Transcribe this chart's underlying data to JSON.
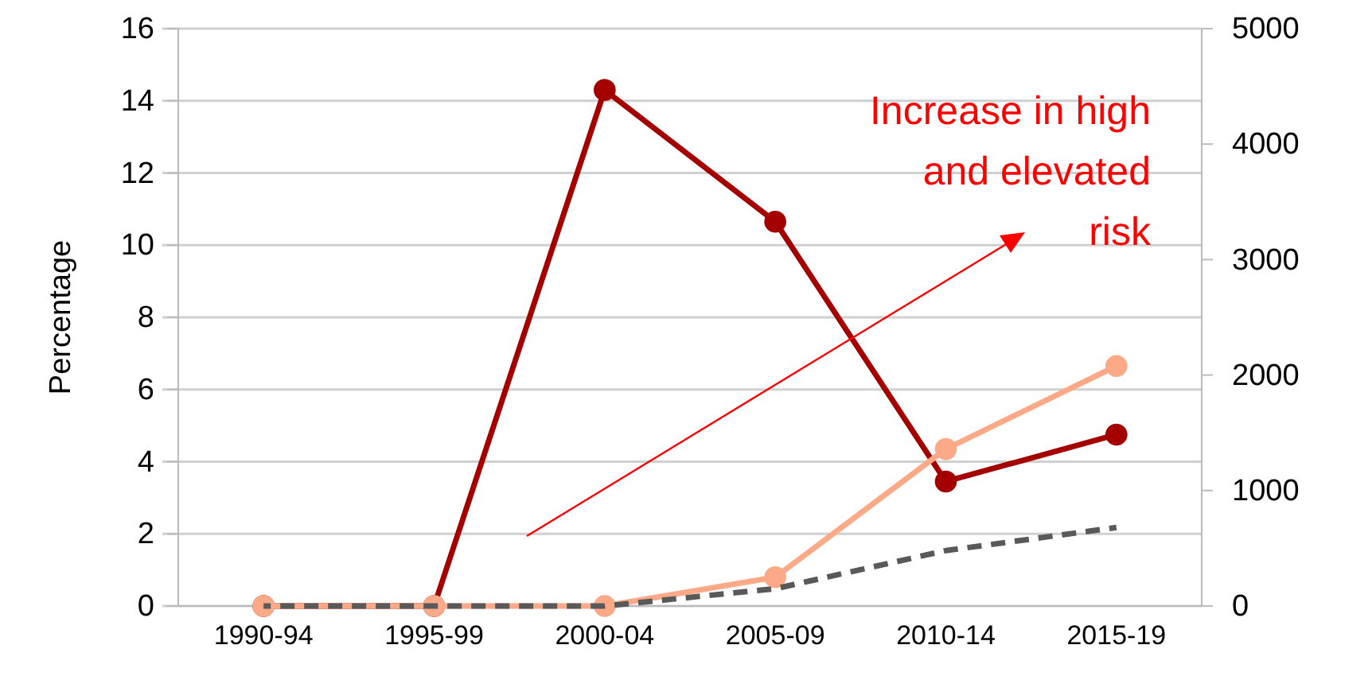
{
  "chart_data": {
    "type": "line",
    "ylabel": "Percentage",
    "categories": [
      "1990-94",
      "1995-99",
      "2000-04",
      "2005-09",
      "2010-14",
      "2015-19"
    ],
    "series": [
      {
        "color": "#a50000",
        "values": [
          0,
          0,
          14.3,
          10.65,
          3.45,
          4.75
        ],
        "marker": "circle"
      },
      {
        "color": "#fca988",
        "values": [
          0,
          0,
          0,
          0.8,
          4.35,
          6.65
        ],
        "marker": "circle"
      },
      {
        "color": "#595959",
        "values": [
          0,
          0,
          0,
          150,
          480,
          680
        ],
        "axis": "y2",
        "marker": "none",
        "line_style": "dashed"
      }
    ],
    "ylim": [
      0,
      16
    ],
    "yticks": [
      0,
      2,
      4,
      6,
      8,
      10,
      12,
      14,
      16
    ],
    "y2lim": [
      0,
      5000
    ],
    "y2ticks": [
      0,
      1000,
      2000,
      3000,
      4000,
      5000
    ],
    "grid": "y",
    "annotations": [
      "Increase  in high\nand elevated\nrisk"
    ]
  }
}
